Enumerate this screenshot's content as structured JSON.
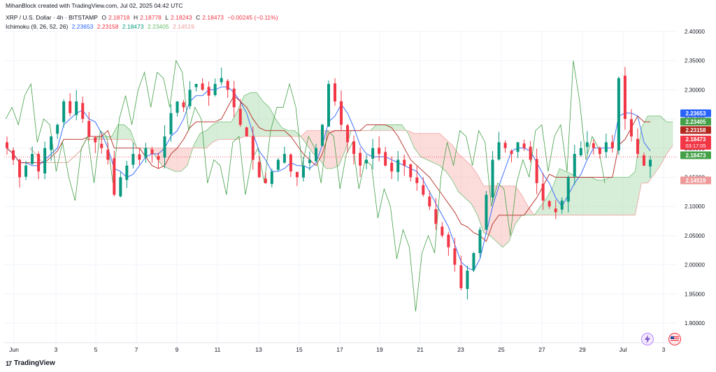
{
  "header": {
    "credit": "MihanBlock created with TradingView.com, Jul 02, 2025 04:42 UTC",
    "symbol": "XRP / U.S. Dollar · 4h · BITSTAMP",
    "ohlc": {
      "o_label": "O",
      "o": "2.18718",
      "h_label": "H",
      "h": "2.18778",
      "l_label": "L",
      "l": "2.18243",
      "c_label": "C",
      "c": "2.18473",
      "change": "−0.00245 (−0.11%)"
    },
    "ichimoku": {
      "label": "Ichimoku (9, 26, 52, 26)",
      "conversion": "2.23653",
      "base": "2.23158",
      "lagging": "2.18473",
      "lead_a": "2.23405",
      "lead_b": "2.14519"
    }
  },
  "footer": {
    "brand": "TradingView",
    "brand_mark": "17"
  },
  "icons": {
    "left": "lightning-bolt-icon",
    "right": "us-flag-icon"
  },
  "colors": {
    "up": "#089981",
    "down": "#f23645",
    "conversion": "#2962ff",
    "base": "#b2281f",
    "lagging": "#43a047",
    "cloud_bull": "#a5d6a7",
    "cloud_bear": "#f7b2ad",
    "grid": "#f0f3fa"
  },
  "chart_data": {
    "type": "candlestick",
    "title": "XRP / U.S. Dollar · 4h · BITSTAMP",
    "ylim": [
      1.88,
      2.41
    ],
    "y_ticks": [
      "2.40000",
      "2.35000",
      "2.30000",
      "2.25000",
      "2.20000",
      "2.15000",
      "2.10000",
      "2.05000",
      "2.00000",
      "1.95000",
      "1.90000"
    ],
    "x_ticks": [
      "Jun",
      "3",
      "5",
      "7",
      "9",
      "11",
      "13",
      "15",
      "17",
      "19",
      "21",
      "23",
      "25",
      "27",
      "29",
      "Jul",
      "3"
    ],
    "price_labels": [
      {
        "name": "conversion-line-label",
        "value": "2.23653",
        "color": "#2962ff"
      },
      {
        "name": "lead-a-label",
        "value": "2.23405",
        "color": "#43a047"
      },
      {
        "name": "base-line-label",
        "value": "2.23158",
        "color": "#b2281f"
      },
      {
        "name": "last-price-label",
        "value": "2.18473",
        "countdown": "03:17:05",
        "color": "#f23645"
      },
      {
        "name": "lagging-label",
        "value": "2.18473",
        "color": "#43a047"
      },
      {
        "name": "lead-b-label",
        "value": "2.14519",
        "color": "#ef9a9a"
      }
    ],
    "closes": [
      2.2,
      2.18,
      2.15,
      2.17,
      2.19,
      2.16,
      2.2,
      2.22,
      2.24,
      2.28,
      2.26,
      2.28,
      2.25,
      2.22,
      2.21,
      2.2,
      2.18,
      2.12,
      2.15,
      2.17,
      2.19,
      2.18,
      2.2,
      2.19,
      2.18,
      2.22,
      2.26,
      2.28,
      2.27,
      2.3,
      2.31,
      2.3,
      2.29,
      2.31,
      2.32,
      2.3,
      2.27,
      2.24,
      2.22,
      2.18,
      2.15,
      2.14,
      2.16,
      2.18,
      2.19,
      2.16,
      2.15,
      2.17,
      2.18,
      2.2,
      2.24,
      2.31,
      2.28,
      2.24,
      2.21,
      2.19,
      2.17,
      2.18,
      2.2,
      2.19,
      2.17,
      2.16,
      2.18,
      2.17,
      2.15,
      2.14,
      2.12,
      2.1,
      2.07,
      2.05,
      2.03,
      2.0,
      1.96,
      1.99,
      2.02,
      2.06,
      2.12,
      2.18,
      2.21,
      2.2,
      2.19,
      2.21,
      2.2,
      2.18,
      2.14,
      2.11,
      2.1,
      2.09,
      2.11,
      2.15,
      2.19,
      2.2,
      2.21,
      2.2,
      2.19,
      2.21,
      2.2,
      2.32,
      2.25,
      2.22,
      2.19,
      2.17,
      2.18
    ],
    "series": [
      {
        "name": "Conversion Line",
        "color": "#2962ff"
      },
      {
        "name": "Base Line",
        "color": "#b2281f"
      },
      {
        "name": "Lagging Span",
        "color": "#43a047"
      },
      {
        "name": "Leading Span A",
        "color": "#66bb6a"
      },
      {
        "name": "Leading Span B",
        "color": "#ef9a9a"
      }
    ]
  }
}
